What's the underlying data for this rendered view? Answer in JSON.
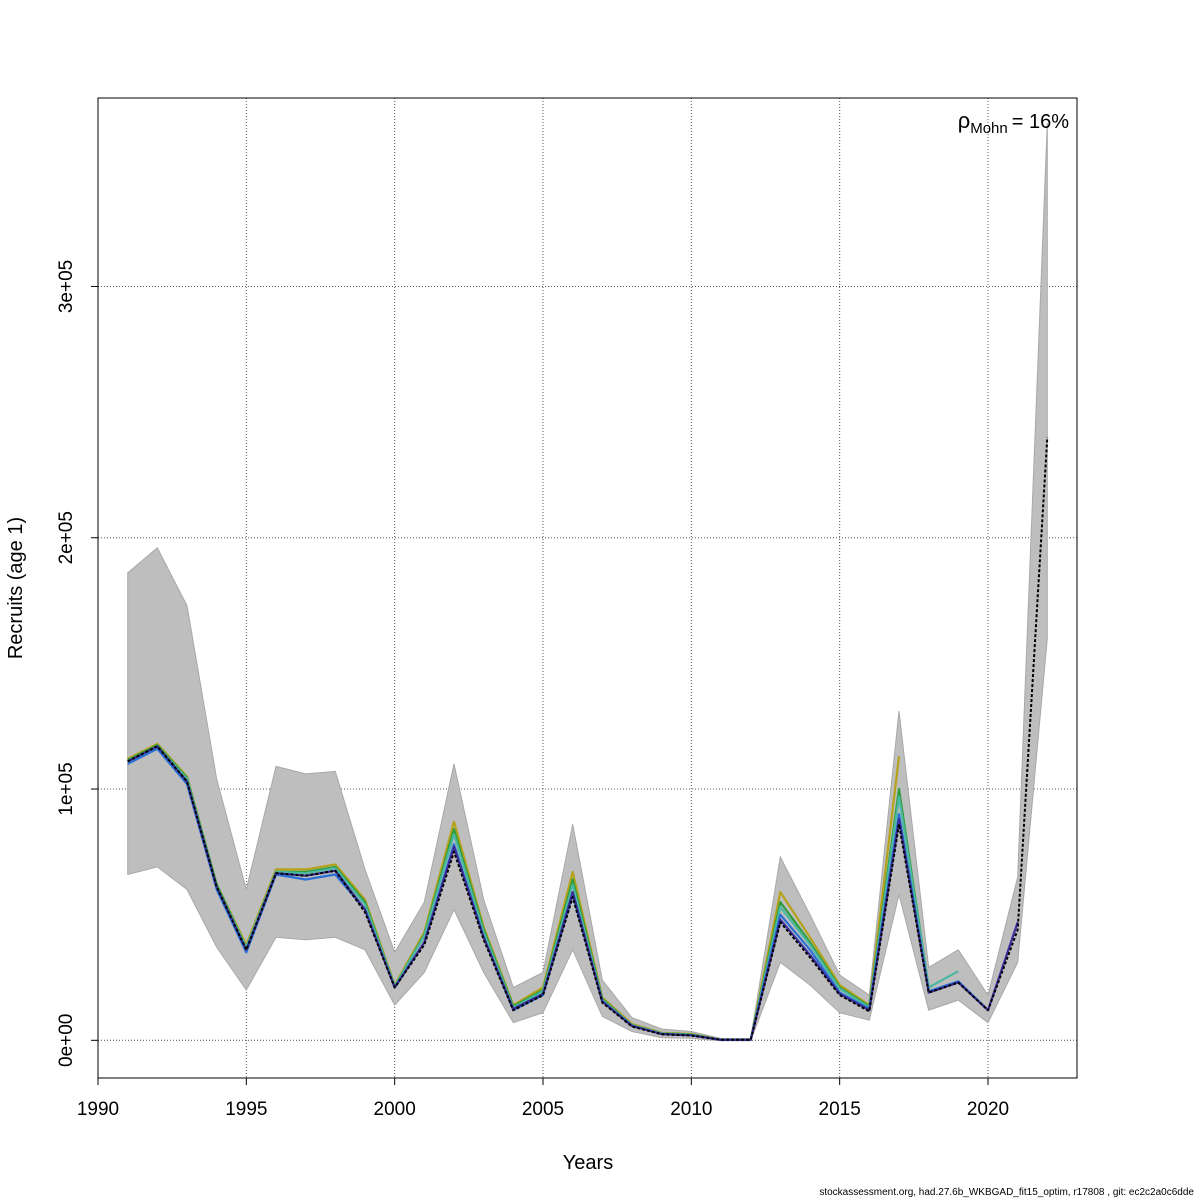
{
  "footer": "stockassessment.org, had.27.6b_WKBGAD_fit15_optim, r17808 , git: ec2c2a0c6dde",
  "annotation": {
    "symbol": "ρ",
    "subscript": "Mohn",
    "rest": "= 16%"
  },
  "chart_data": {
    "type": "line",
    "title": "",
    "xlabel": "Years",
    "ylabel": "Recruits (age 1)",
    "xlim": [
      1990,
      2023
    ],
    "ylim": [
      -15000,
      375000
    ],
    "grid": true,
    "xticks": [
      1990,
      1995,
      2000,
      2005,
      2010,
      2015,
      2020
    ],
    "xtick_labels": [
      "1990",
      "1995",
      "2000",
      "2005",
      "2010",
      "2015",
      "2020"
    ],
    "yticks": [
      0,
      100000,
      200000,
      300000
    ],
    "ytick_labels": [
      "0e+00",
      "1e+05",
      "2e+05",
      "3e+05"
    ],
    "confidence_band": {
      "color": "#bebebe",
      "x": [
        1991,
        1992,
        1993,
        1994,
        1995,
        1996,
        1997,
        1998,
        1999,
        2000,
        2001,
        2002,
        2003,
        2004,
        2005,
        2006,
        2007,
        2008,
        2009,
        2010,
        2011,
        2012,
        2013,
        2014,
        2015,
        2016,
        2017,
        2018,
        2019,
        2020,
        2021,
        2022
      ],
      "upper": [
        186000,
        196000,
        173000,
        104000,
        60000,
        109000,
        106000,
        107000,
        68000,
        35000,
        55000,
        110000,
        56000,
        21000,
        27000,
        86000,
        24000,
        9000,
        4500,
        3500,
        700,
        700,
        73000,
        50000,
        26000,
        18000,
        131000,
        29000,
        36000,
        18000,
        65000,
        365000
      ],
      "lower": [
        66000,
        69000,
        60000,
        37000,
        20000,
        41000,
        40000,
        41000,
        36000,
        14000,
        27000,
        52000,
        27000,
        7000,
        11000,
        36000,
        9500,
        3500,
        1000,
        800,
        -200,
        -200,
        31000,
        22000,
        11000,
        8000,
        58000,
        12000,
        16000,
        7000,
        31000,
        160000
      ]
    },
    "series": [
      {
        "color": "#b5a21a",
        "x": [
          1991,
          1992,
          1993,
          1994,
          1995,
          1996,
          1997,
          1998,
          1999,
          2000,
          2001,
          2002,
          2003,
          2004,
          2005,
          2006,
          2007,
          2008,
          2009,
          2010,
          2011,
          2012,
          2013,
          2014,
          2015,
          2016,
          2017
        ],
        "values": [
          112000,
          118000,
          105000,
          62000,
          38000,
          68000,
          68000,
          70000,
          56000,
          22000,
          43000,
          87000,
          45000,
          14000,
          21000,
          67000,
          17000,
          6500,
          3000,
          2500,
          200,
          200,
          59000,
          41000,
          22000,
          14000,
          113000
        ]
      },
      {
        "color": "#2e9d3a",
        "x": [
          1991,
          1992,
          1993,
          1994,
          1995,
          1996,
          1997,
          1998,
          1999,
          2000,
          2001,
          2002,
          2003,
          2004,
          2005,
          2006,
          2007,
          2008,
          2009,
          2010,
          2011,
          2012,
          2013,
          2014,
          2015,
          2016,
          2017,
          2018
        ],
        "values": [
          111500,
          117500,
          104500,
          62000,
          37000,
          67000,
          67000,
          69000,
          55000,
          21500,
          42000,
          84000,
          44000,
          13500,
          20000,
          64000,
          16500,
          6000,
          2800,
          2300,
          200,
          200,
          55000,
          39000,
          21000,
          13500,
          100000,
          21000
        ]
      },
      {
        "color": "#4cb8a3",
        "x": [
          1991,
          1992,
          1993,
          1994,
          1995,
          1996,
          1997,
          1998,
          1999,
          2000,
          2001,
          2002,
          2003,
          2004,
          2005,
          2006,
          2007,
          2008,
          2009,
          2010,
          2011,
          2012,
          2013,
          2014,
          2015,
          2016,
          2017,
          2018,
          2019
        ],
        "values": [
          111000,
          117000,
          104000,
          61000,
          37000,
          67000,
          66500,
          68500,
          54000,
          21500,
          41500,
          82000,
          43000,
          13000,
          19500,
          62000,
          16000,
          6000,
          2700,
          2200,
          200,
          200,
          53000,
          38000,
          20500,
          13000,
          97000,
          21000,
          27500
        ]
      },
      {
        "color": "#2a6fd6",
        "x": [
          1991,
          1992,
          1993,
          1994,
          1995,
          1996,
          1997,
          1998,
          1999,
          2000,
          2001,
          2002,
          2003,
          2004,
          2005,
          2006,
          2007,
          2008,
          2009,
          2010,
          2011,
          2012,
          2013,
          2014,
          2015,
          2016,
          2017,
          2018,
          2019,
          2020
        ],
        "values": [
          110000,
          116000,
          102000,
          60000,
          35000,
          66000,
          64000,
          66000,
          52000,
          21000,
          39000,
          78000,
          41000,
          12000,
          18000,
          58000,
          15500,
          5800,
          2500,
          2000,
          200,
          200,
          50000,
          36000,
          19000,
          12500,
          90000,
          19500,
          23500,
          12000
        ]
      },
      {
        "color": "#3a2d9c",
        "x": [
          1991,
          1992,
          1993,
          1994,
          1995,
          1996,
          1997,
          1998,
          1999,
          2000,
          2001,
          2002,
          2003,
          2004,
          2005,
          2006,
          2007,
          2008,
          2009,
          2010,
          2011,
          2012,
          2013,
          2014,
          2015,
          2016,
          2017,
          2018,
          2019,
          2020,
          2021
        ],
        "values": [
          111000,
          117000,
          103000,
          61000,
          36000,
          66500,
          65500,
          67500,
          52000,
          21000,
          39000,
          77000,
          41000,
          12500,
          18500,
          59000,
          15500,
          5700,
          2500,
          2000,
          200,
          200,
          48000,
          34000,
          18500,
          12000,
          88000,
          19000,
          23000,
          12000,
          47000
        ]
      },
      {
        "color": "#000000",
        "dash": "3,2",
        "x": [
          1991,
          1992,
          1993,
          1994,
          1995,
          1996,
          1997,
          1998,
          1999,
          2000,
          2001,
          2002,
          2003,
          2004,
          2005,
          2006,
          2007,
          2008,
          2009,
          2010,
          2011,
          2012,
          2013,
          2014,
          2015,
          2016,
          2017,
          2018,
          2019,
          2020,
          2021,
          2022
        ],
        "values": [
          111000,
          117000,
          103000,
          61000,
          36000,
          66500,
          65500,
          67500,
          51000,
          21000,
          38000,
          75000,
          40000,
          12000,
          18000,
          57000,
          15000,
          5500,
          2400,
          1900,
          200,
          200,
          47000,
          33000,
          18000,
          11500,
          86000,
          19000,
          23000,
          12000,
          44000,
          240000
        ]
      }
    ]
  }
}
